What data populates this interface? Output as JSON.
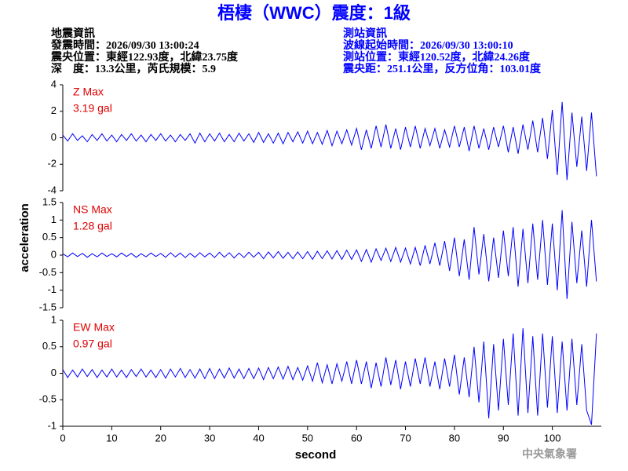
{
  "chart_data": {
    "type": "line",
    "title": "梧棲（WWC）震度：1級",
    "info_left": [
      "地震資訊",
      "發震時間：2026/09/30 13:00:24",
      "震央位置：東經122.93度，北緯23.75度",
      "深　度：13.3公里，芮氏規模：5.9"
    ],
    "info_right": [
      "測站資訊",
      "波線起始時間：2026/09/30 13:00:10",
      "測站位置：東經120.52度，北緯24.26度",
      "震央距：251.1公里，反方位角：103.01度"
    ],
    "xlabel": "second",
    "ylabel": "acceleration",
    "credit": "中央氣象署",
    "color": "#0000ff",
    "xlim": [
      0,
      110
    ],
    "xticks": [
      0,
      10,
      20,
      30,
      40,
      50,
      60,
      70,
      80,
      90,
      100
    ],
    "x": [
      0,
      1,
      2,
      3,
      4,
      5,
      6,
      7,
      8,
      9,
      10,
      11,
      12,
      13,
      14,
      15,
      16,
      17,
      18,
      19,
      20,
      21,
      22,
      23,
      24,
      25,
      26,
      27,
      28,
      29,
      30,
      31,
      32,
      33,
      34,
      35,
      36,
      37,
      38,
      39,
      40,
      41,
      42,
      43,
      44,
      45,
      46,
      47,
      48,
      49,
      50,
      51,
      52,
      53,
      54,
      55,
      56,
      57,
      58,
      59,
      60,
      61,
      62,
      63,
      64,
      65,
      66,
      67,
      68,
      69,
      70,
      71,
      72,
      73,
      74,
      75,
      76,
      77,
      78,
      79,
      80,
      81,
      82,
      83,
      84,
      85,
      86,
      87,
      88,
      89,
      90,
      91,
      92,
      93,
      94,
      95,
      96,
      97,
      98,
      99,
      100,
      101,
      102,
      103,
      104,
      105,
      106,
      107,
      108,
      109
    ],
    "panels": [
      {
        "label": "Z Max",
        "max_label": "3.19 gal",
        "ylim": [
          -4,
          4
        ],
        "yticks": [
          -4,
          -2,
          0,
          2,
          4
        ],
        "values": [
          0.2,
          -0.25,
          0.3,
          -0.2,
          0.15,
          -0.3,
          0.25,
          -0.2,
          0.3,
          -0.25,
          0.2,
          -0.3,
          0.25,
          -0.2,
          0.3,
          -0.25,
          0.2,
          -0.3,
          0.25,
          -0.2,
          0.3,
          -0.25,
          0.2,
          -0.3,
          0.25,
          -0.2,
          0.3,
          -0.4,
          0.35,
          -0.3,
          0.3,
          -0.25,
          0.35,
          -0.3,
          0.25,
          -0.3,
          0.35,
          -0.25,
          0.3,
          -0.35,
          0.4,
          -0.35,
          0.3,
          -0.4,
          0.35,
          -0.45,
          0.4,
          -0.3,
          0.45,
          -0.4,
          0.5,
          -0.45,
          0.4,
          -0.5,
          0.55,
          -0.6,
          0.5,
          -0.45,
          0.6,
          -0.55,
          0.7,
          -0.9,
          0.6,
          -0.8,
          0.9,
          -0.7,
          1.0,
          -0.8,
          0.7,
          -0.9,
          0.8,
          -0.7,
          0.9,
          -0.8,
          0.7,
          -0.6,
          0.7,
          -0.8,
          0.6,
          -0.7,
          0.9,
          -0.7,
          0.8,
          -1.0,
          0.9,
          -0.8,
          0.7,
          -0.9,
          0.8,
          -0.7,
          0.9,
          -1.1,
          0.8,
          -1.2,
          1.0,
          -0.9,
          1.3,
          -1.1,
          1.5,
          -1.6,
          2.1,
          -2.8,
          2.7,
          -3.19,
          1.9,
          -2.2,
          1.6,
          -2.5,
          1.9,
          -2.9
        ]
      },
      {
        "label": "NS Max",
        "max_label": "1.28 gal",
        "ylim": [
          -1.5,
          1.5
        ],
        "yticks": [
          -1.5,
          -1,
          -0.5,
          0,
          0.5,
          1,
          1.5
        ],
        "values": [
          0.04,
          -0.05,
          0.06,
          -0.04,
          0.05,
          -0.06,
          0.04,
          -0.05,
          0.06,
          -0.04,
          0.04,
          -0.05,
          0.06,
          -0.04,
          0.05,
          -0.06,
          0.04,
          -0.05,
          0.06,
          -0.04,
          0.05,
          -0.06,
          0.07,
          -0.05,
          0.06,
          -0.07,
          0.05,
          -0.06,
          0.07,
          -0.05,
          0.06,
          -0.07,
          0.08,
          -0.06,
          0.07,
          -0.08,
          0.06,
          -0.07,
          0.08,
          -0.06,
          0.08,
          -0.1,
          0.09,
          -0.08,
          0.1,
          -0.09,
          0.08,
          -0.1,
          0.09,
          -0.1,
          0.1,
          -0.12,
          0.11,
          -0.1,
          0.12,
          -0.11,
          0.13,
          -0.12,
          0.14,
          -0.12,
          0.15,
          -0.18,
          0.16,
          -0.2,
          0.18,
          -0.15,
          0.2,
          -0.18,
          0.22,
          -0.2,
          0.2,
          -0.25,
          0.22,
          -0.3,
          0.28,
          -0.25,
          0.35,
          -0.3,
          0.4,
          -0.45,
          0.5,
          -0.6,
          0.45,
          -0.7,
          0.8,
          -0.55,
          0.6,
          -0.75,
          0.5,
          -0.65,
          0.7,
          -0.6,
          0.8,
          -0.9,
          0.75,
          -0.8,
          0.9,
          -0.7,
          1.0,
          -0.85,
          0.9,
          -1.0,
          1.28,
          -1.25,
          0.95,
          -0.8,
          0.7,
          -0.9,
          1.0,
          -0.75
        ]
      },
      {
        "label": "EW Max",
        "max_label": "0.97 gal",
        "ylim": [
          -1,
          1
        ],
        "yticks": [
          -1,
          -0.5,
          0,
          0.5,
          1
        ],
        "values": [
          0.07,
          -0.08,
          0.06,
          -0.07,
          0.08,
          -0.06,
          0.07,
          -0.08,
          0.06,
          -0.07,
          0.08,
          -0.07,
          0.06,
          -0.08,
          0.07,
          -0.06,
          0.08,
          -0.07,
          0.06,
          -0.08,
          0.07,
          -0.09,
          0.08,
          -0.07,
          0.09,
          -0.08,
          0.07,
          -0.09,
          0.08,
          -0.1,
          0.09,
          -0.1,
          0.08,
          -0.09,
          0.1,
          -0.09,
          0.08,
          -0.1,
          0.09,
          -0.1,
          0.1,
          -0.12,
          0.11,
          -0.1,
          0.12,
          -0.11,
          0.13,
          -0.12,
          0.11,
          -0.13,
          0.14,
          -0.15,
          0.2,
          -0.18,
          0.16,
          -0.2,
          0.18,
          -0.15,
          0.22,
          -0.2,
          0.25,
          -0.2,
          0.22,
          -0.28,
          0.2,
          -0.25,
          0.3,
          -0.22,
          0.25,
          -0.3,
          0.22,
          -0.25,
          0.28,
          -0.2,
          0.3,
          -0.25,
          0.22,
          -0.3,
          0.28,
          -0.25,
          0.35,
          -0.4,
          0.3,
          -0.45,
          0.5,
          -0.55,
          0.6,
          -0.85,
          0.55,
          -0.7,
          0.65,
          -0.6,
          0.75,
          -0.8,
          0.85,
          -0.75,
          0.7,
          -0.8,
          0.75,
          -0.65,
          0.7,
          -0.75,
          0.6,
          -0.7,
          0.65,
          -0.6,
          0.55,
          -0.7,
          -0.97,
          0.75
        ]
      }
    ]
  }
}
